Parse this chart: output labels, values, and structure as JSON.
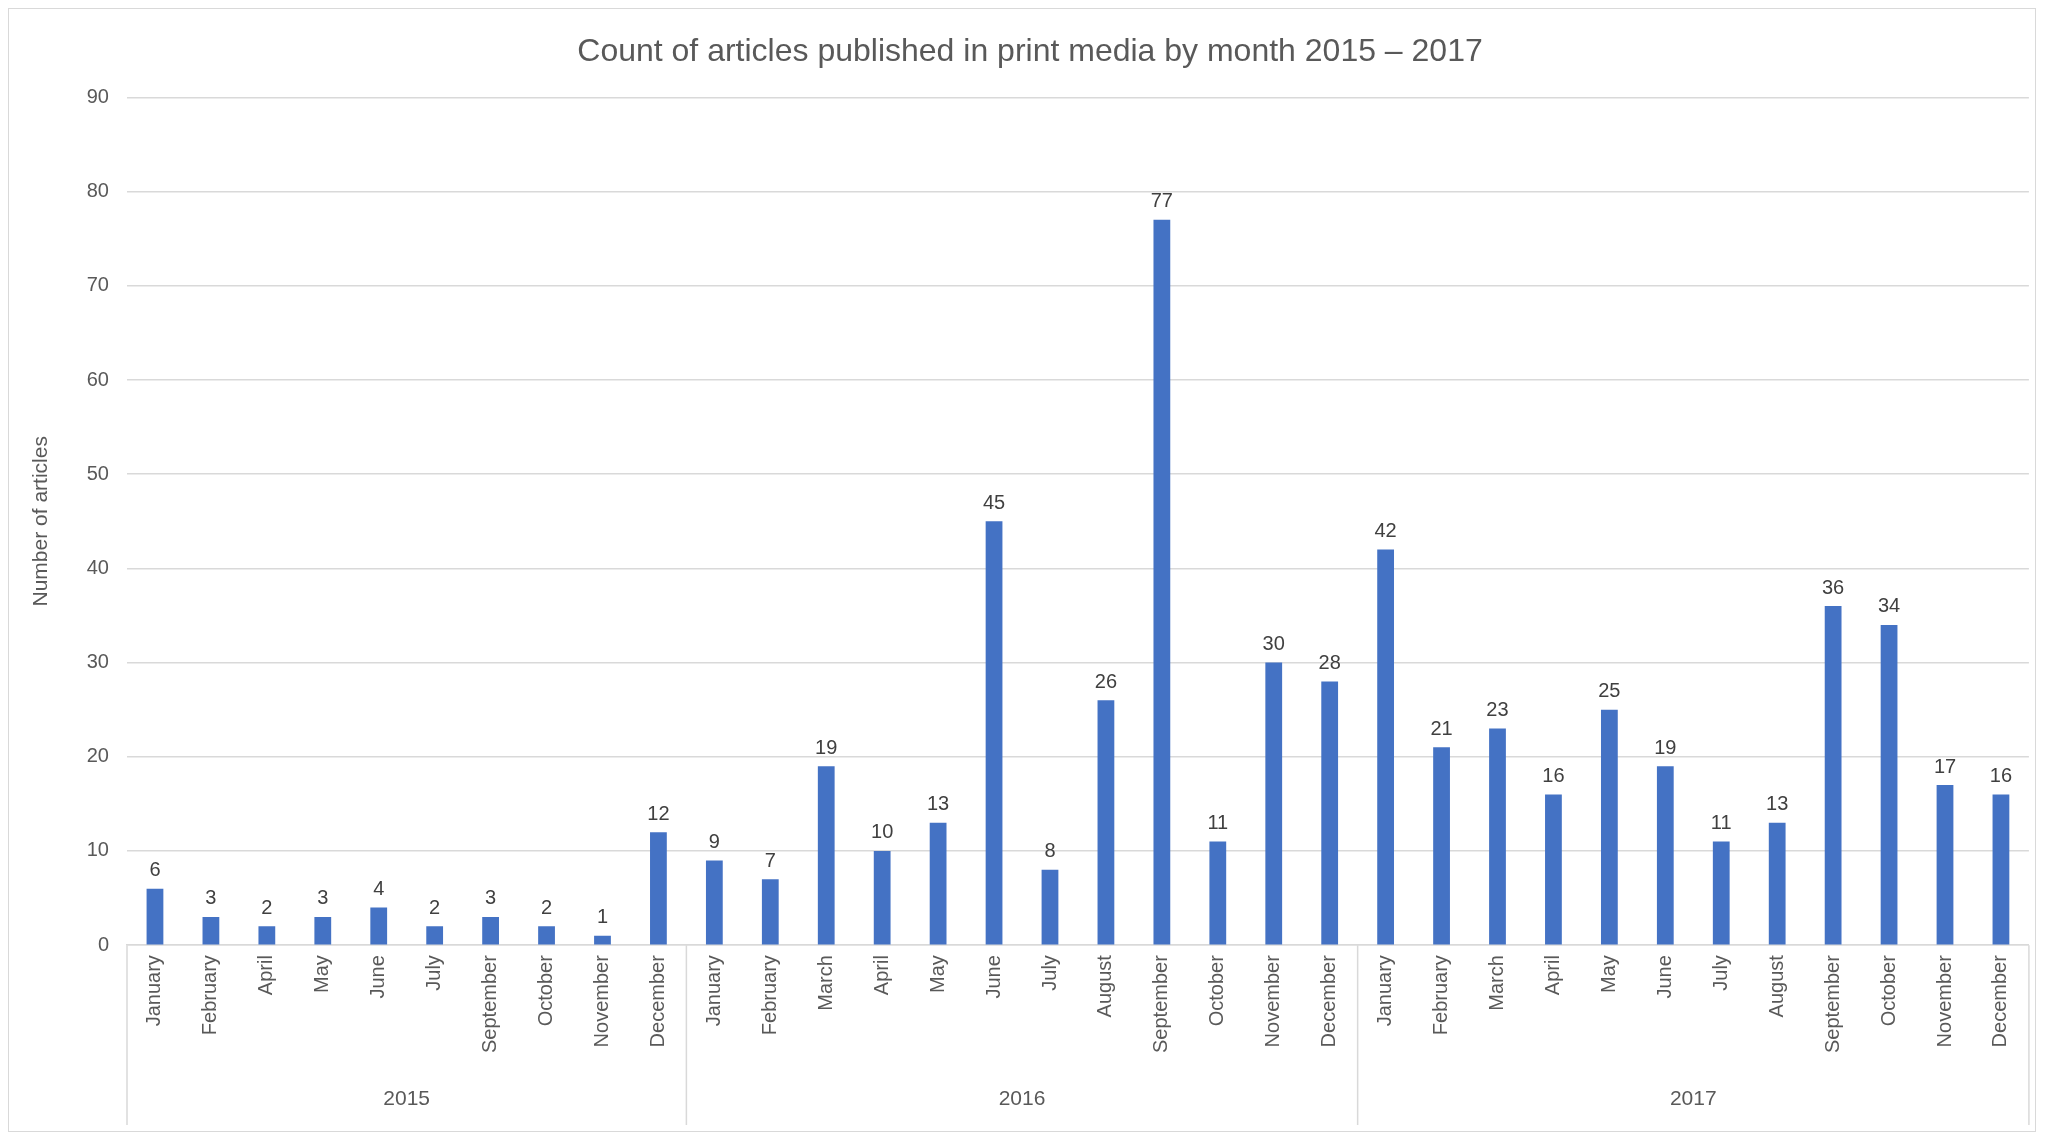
{
  "chart_data": {
    "type": "bar",
    "title": "Count of articles published in print media by month 2015 – 2017",
    "ylabel": "Number of articles",
    "categories": [
      "January",
      "February",
      "April",
      "May",
      "June",
      "July",
      "September",
      "October",
      "November",
      "December",
      "January",
      "February",
      "March",
      "April",
      "May",
      "June",
      "July",
      "August",
      "September",
      "October",
      "November",
      "December",
      "January",
      "February",
      "March",
      "April",
      "May",
      "June",
      "July",
      "August",
      "September",
      "October",
      "November",
      "December"
    ],
    "values": [
      6,
      3,
      2,
      3,
      4,
      2,
      3,
      2,
      1,
      12,
      9,
      7,
      19,
      10,
      13,
      45,
      8,
      26,
      77,
      11,
      30,
      28,
      42,
      21,
      23,
      16,
      25,
      19,
      11,
      13,
      36,
      34,
      17,
      16
    ],
    "color": "#4472c4",
    "ylim": [
      0,
      90
    ],
    "yticks": [
      0,
      10,
      20,
      30,
      40,
      50,
      60,
      70,
      80,
      90
    ],
    "grid": "y",
    "data_labels": true,
    "annotations": [
      "2015",
      "2016",
      "2017"
    ]
  }
}
